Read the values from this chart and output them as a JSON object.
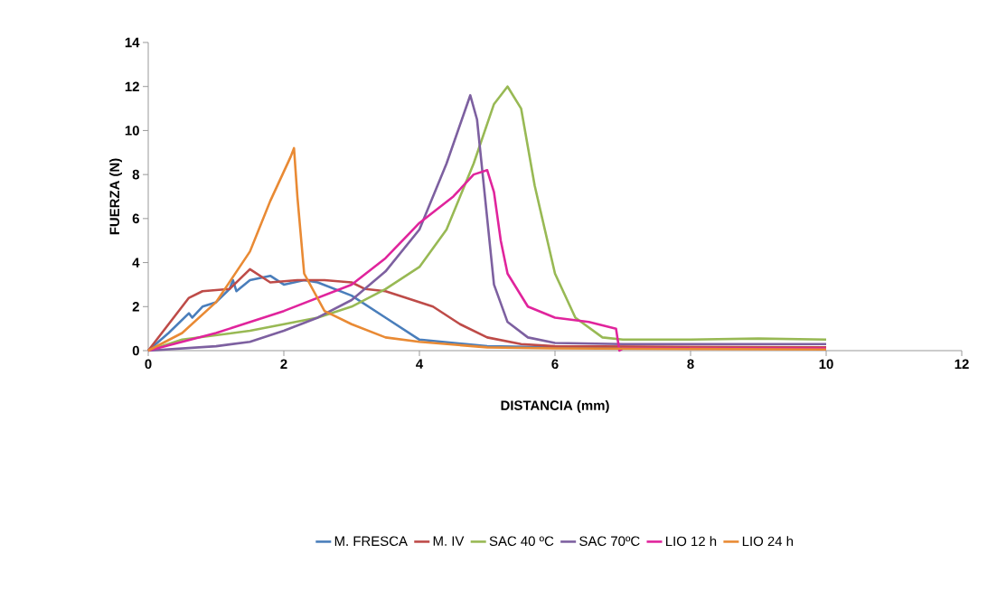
{
  "chart_data": {
    "type": "line",
    "xlabel": "DISTANCIA (mm)",
    "ylabel": "FUERZA (N)",
    "xlim": [
      0,
      12
    ],
    "ylim": [
      0,
      14
    ],
    "xticks": [
      0,
      2,
      4,
      6,
      8,
      10,
      12
    ],
    "yticks": [
      0,
      2,
      4,
      6,
      8,
      10,
      12,
      14
    ],
    "grid": false,
    "legend": "bottom",
    "marker": "none",
    "line_style": "solid",
    "series": [
      {
        "name": "M. FRESCA",
        "color": "#4a7ebb",
        "x": [
          0,
          0.3,
          0.6,
          0.65,
          0.8,
          1.0,
          1.2,
          1.25,
          1.3,
          1.5,
          1.8,
          2.0,
          2.3,
          2.5,
          3.0,
          3.5,
          4.0,
          5,
          6,
          10
        ],
        "values": [
          0,
          0.8,
          1.7,
          1.5,
          2.0,
          2.2,
          2.8,
          3.2,
          2.7,
          3.2,
          3.4,
          3.0,
          3.2,
          3.1,
          2.5,
          1.5,
          0.5,
          0.2,
          0.15,
          0.1
        ]
      },
      {
        "name": "M. IV",
        "color": "#be4b48",
        "x": [
          0,
          0.3,
          0.6,
          0.8,
          1.2,
          1.5,
          1.8,
          2.2,
          2.6,
          3.0,
          3.2,
          3.5,
          3.8,
          4.2,
          4.6,
          5,
          5.5,
          6,
          10
        ],
        "values": [
          0,
          1.2,
          2.4,
          2.7,
          2.8,
          3.7,
          3.1,
          3.2,
          3.2,
          3.1,
          2.8,
          2.7,
          2.4,
          2.0,
          1.2,
          0.6,
          0.3,
          0.2,
          0.15
        ]
      },
      {
        "name": "SAC 40 ºC",
        "color": "#98b954",
        "x": [
          0,
          0.5,
          1.5,
          2.5,
          3.0,
          3.5,
          4,
          4.4,
          4.8,
          5.1,
          5.3,
          5.5,
          5.7,
          6.0,
          6.3,
          6.7,
          7,
          8,
          9,
          10
        ],
        "values": [
          0,
          0.5,
          0.9,
          1.5,
          2.0,
          2.8,
          3.8,
          5.5,
          8.5,
          11.2,
          12.0,
          11.0,
          7.5,
          3.5,
          1.5,
          0.6,
          0.5,
          0.5,
          0.55,
          0.5
        ]
      },
      {
        "name": "SAC 70ºC",
        "color": "#7d60a0",
        "x": [
          0,
          1,
          1.5,
          2,
          2.5,
          3,
          3.5,
          4,
          4.4,
          4.75,
          4.85,
          5.0,
          5.1,
          5.3,
          5.6,
          6,
          7,
          10
        ],
        "values": [
          0,
          0.2,
          0.4,
          0.9,
          1.5,
          2.3,
          3.6,
          5.5,
          8.5,
          11.6,
          10.5,
          6.0,
          3.0,
          1.3,
          0.6,
          0.35,
          0.3,
          0.3
        ]
      },
      {
        "name": "LIO 12 h",
        "color": "#e0249c",
        "x": [
          0,
          1,
          2,
          3,
          3.5,
          4,
          4.5,
          4.8,
          5.0,
          5.1,
          5.2,
          5.3,
          5.6,
          6.0,
          6.5,
          6.9,
          6.95,
          7,
          10
        ],
        "values": [
          0,
          0.8,
          1.8,
          3.0,
          4.2,
          5.8,
          7.0,
          8.0,
          8.2,
          7.2,
          5.0,
          3.5,
          2.0,
          1.5,
          1.3,
          1.0,
          0,
          0.1,
          0.1
        ]
      },
      {
        "name": "LIO 24 h",
        "color": "#e98a34",
        "x": [
          0,
          0.5,
          1.0,
          1.5,
          1.8,
          2.1,
          2.15,
          2.2,
          2.3,
          2.6,
          3,
          3.5,
          4,
          5,
          6,
          10
        ],
        "values": [
          0,
          0.8,
          2.2,
          4.5,
          6.8,
          8.8,
          9.2,
          7.0,
          3.5,
          1.8,
          1.2,
          0.6,
          0.4,
          0.15,
          0.1,
          0.05
        ]
      }
    ]
  }
}
